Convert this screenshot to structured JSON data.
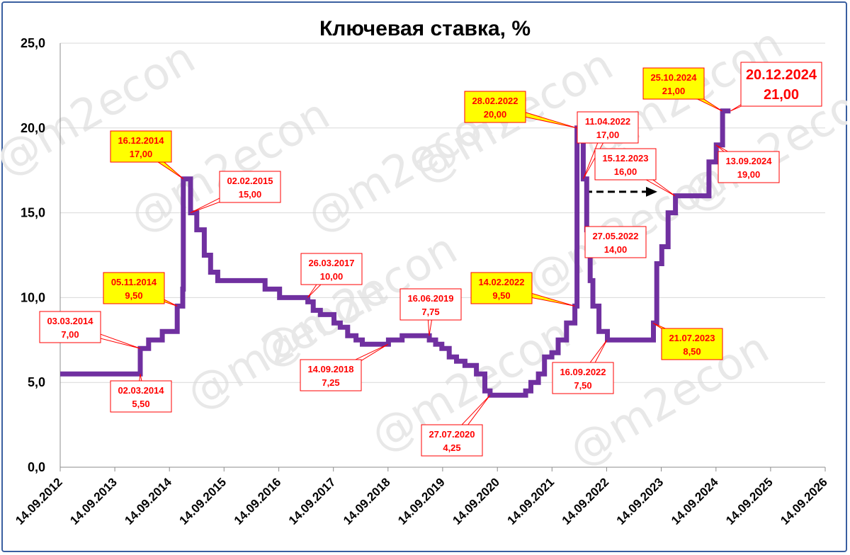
{
  "chart_data": {
    "type": "line",
    "title": "Ключевая ставка, %",
    "xlabel": "",
    "ylabel": "",
    "ylim": [
      0,
      25
    ],
    "y_ticks": [
      "0,0",
      "5,0",
      "10,0",
      "15,0",
      "20,0",
      "25,0"
    ],
    "x_ticks": [
      "14.09.2012",
      "14.09.2013",
      "14.09.2014",
      "14.09.2015",
      "14.09.2016",
      "14.09.2017",
      "14.09.2018",
      "14.09.2019",
      "14.09.2020",
      "14.09.2021",
      "14.09.2022",
      "14.09.2023",
      "14.09.2024",
      "14.09.2025",
      "14.09.2026"
    ],
    "grid": true,
    "legend": "none",
    "colors": {
      "line": "#7030a0",
      "annotation_text": "#ff0000",
      "highlight_fill": "#ffff00",
      "frame": "#3a5fa0",
      "arrow": "#000000"
    },
    "watermark": "@m2econ",
    "series": [
      {
        "values": [
          [
            "2012-09-14",
            5.5
          ],
          [
            "2014-03-03",
            7.0
          ],
          [
            "2014-04-28",
            7.5
          ],
          [
            "2014-07-28",
            8.0
          ],
          [
            "2014-11-05",
            9.5
          ],
          [
            "2014-12-12",
            10.5
          ],
          [
            "2014-12-16",
            17.0
          ],
          [
            "2015-02-02",
            15.0
          ],
          [
            "2015-03-16",
            14.0
          ],
          [
            "2015-05-05",
            12.5
          ],
          [
            "2015-06-16",
            11.5
          ],
          [
            "2015-08-03",
            11.0
          ],
          [
            "2016-06-14",
            10.5
          ],
          [
            "2016-09-19",
            10.0
          ],
          [
            "2017-03-27",
            9.75
          ],
          [
            "2017-05-02",
            9.25
          ],
          [
            "2017-06-19",
            9.0
          ],
          [
            "2017-09-18",
            8.5
          ],
          [
            "2017-10-30",
            8.25
          ],
          [
            "2017-12-18",
            7.75
          ],
          [
            "2018-02-12",
            7.5
          ],
          [
            "2018-03-26",
            7.25
          ],
          [
            "2018-09-17",
            7.5
          ],
          [
            "2018-12-17",
            7.75
          ],
          [
            "2019-06-17",
            7.5
          ],
          [
            "2019-07-29",
            7.25
          ],
          [
            "2019-09-09",
            7.0
          ],
          [
            "2019-10-28",
            6.5
          ],
          [
            "2019-12-16",
            6.25
          ],
          [
            "2020-02-10",
            6.0
          ],
          [
            "2020-04-27",
            5.5
          ],
          [
            "2020-06-22",
            4.5
          ],
          [
            "2020-07-27",
            4.25
          ],
          [
            "2021-03-22",
            4.5
          ],
          [
            "2021-04-26",
            5.0
          ],
          [
            "2021-06-15",
            5.5
          ],
          [
            "2021-07-26",
            6.5
          ],
          [
            "2021-09-13",
            6.75
          ],
          [
            "2021-10-25",
            7.5
          ],
          [
            "2021-12-20",
            8.5
          ],
          [
            "2022-02-14",
            9.5
          ],
          [
            "2022-02-28",
            20.0
          ],
          [
            "2022-04-11",
            17.0
          ],
          [
            "2022-05-04",
            14.0
          ],
          [
            "2022-05-27",
            11.0
          ],
          [
            "2022-06-14",
            9.5
          ],
          [
            "2022-07-25",
            8.0
          ],
          [
            "2022-09-19",
            7.5
          ],
          [
            "2023-07-24",
            8.5
          ],
          [
            "2023-08-15",
            12.0
          ],
          [
            "2023-09-18",
            13.0
          ],
          [
            "2023-10-30",
            15.0
          ],
          [
            "2023-12-18",
            16.0
          ],
          [
            "2024-07-29",
            18.0
          ],
          [
            "2024-09-16",
            19.0
          ],
          [
            "2024-10-28",
            21.0
          ],
          [
            "2024-12-20",
            21.0
          ]
        ]
      }
    ],
    "annotations": [
      {
        "date": "03.03.2014",
        "value": "7,00",
        "highlight": false
      },
      {
        "date": "02.03.2014",
        "value": "5,50",
        "highlight": false
      },
      {
        "date": "05.11.2014",
        "value": "9,50",
        "highlight": true
      },
      {
        "date": "16.12.2014",
        "value": "17,00",
        "highlight": true
      },
      {
        "date": "02.02.2015",
        "value": "15,00",
        "highlight": false
      },
      {
        "date": "26.03.2017",
        "value": "10,00",
        "highlight": false
      },
      {
        "date": "14.09.2018",
        "value": "7,25",
        "highlight": false
      },
      {
        "date": "16.06.2019",
        "value": "7,75",
        "highlight": false
      },
      {
        "date": "27.07.2020",
        "value": "4,25",
        "highlight": false
      },
      {
        "date": "14.02.2022",
        "value": "9,50",
        "highlight": true
      },
      {
        "date": "28.02.2022",
        "value": "20,00",
        "highlight": true
      },
      {
        "date": "11.04.2022",
        "value": "17,00",
        "highlight": false
      },
      {
        "date": "27.05.2022",
        "value": "14,00",
        "highlight": false
      },
      {
        "date": "16.09.2022",
        "value": "7,50",
        "highlight": false
      },
      {
        "date": "21.07.2023",
        "value": "8,50",
        "highlight": true
      },
      {
        "date": "15.12.2023",
        "value": "16,00",
        "highlight": false
      },
      {
        "date": "13.09.2024",
        "value": "19,00",
        "highlight": false
      },
      {
        "date": "25.10.2024",
        "value": "21,00",
        "highlight": true
      },
      {
        "date": "20.12.2024",
        "value": "21,00",
        "highlight": false,
        "large": true
      }
    ]
  }
}
